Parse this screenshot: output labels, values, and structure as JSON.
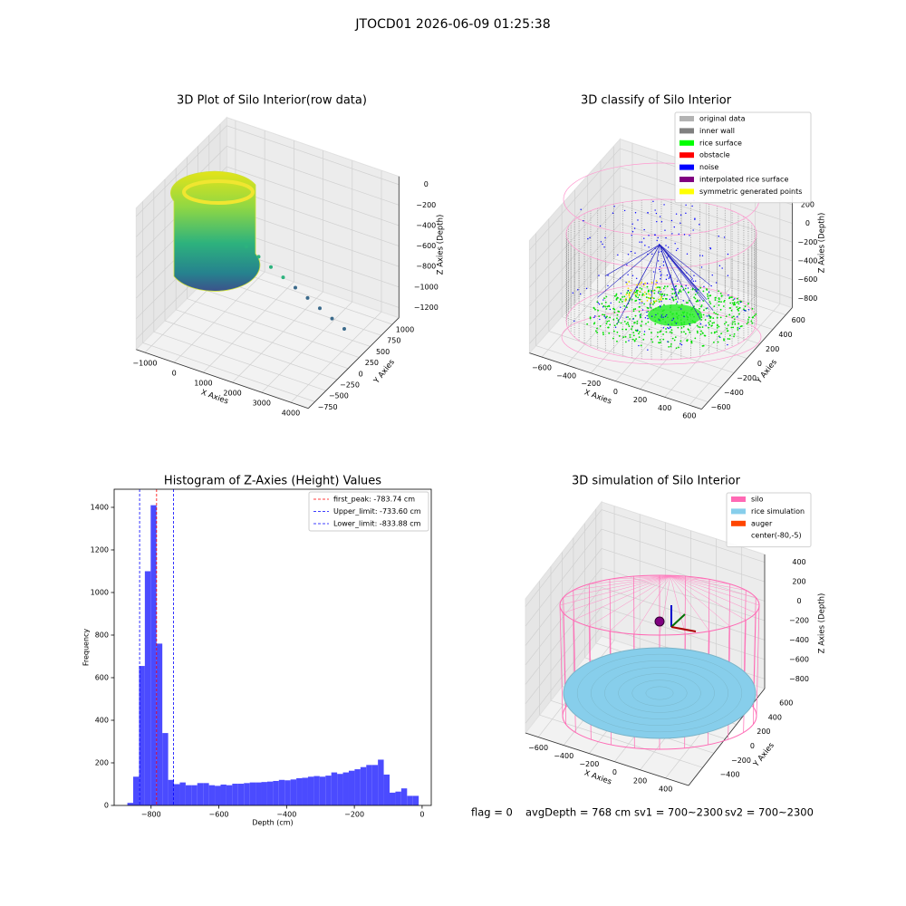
{
  "title": "JTOCD01 2026-06-09 01:25:38",
  "footer": [
    "flag = 0",
    "avgDepth = 768 cm",
    "sv1 = 700~2300",
    "sv2 = 700~2300"
  ],
  "chart_data": [
    {
      "type": "scatter3d",
      "title": "3D Plot of Silo Interior(row data)",
      "xlabel": "X Axies",
      "ylabel": "Y Axies",
      "zlabel": "Z Axies (Depth)",
      "xlim": [
        -1300,
        4600
      ],
      "ylim": [
        -900,
        1150
      ],
      "zlim": [
        -1300,
        80
      ],
      "xticks": [
        {
          "value": -1000,
          "label": "−1000"
        },
        0,
        1000,
        2000,
        3000,
        4000
      ],
      "yticks": [
        {
          "value": -750,
          "label": "−750"
        },
        {
          "value": -500,
          "label": "−500"
        },
        {
          "value": -250,
          "label": "−250"
        },
        0,
        250,
        500,
        750,
        1000
      ],
      "zticks": [
        0,
        {
          "value": -200,
          "label": "−200"
        },
        {
          "value": -400,
          "label": "−400"
        },
        {
          "value": -600,
          "label": "−600"
        },
        {
          "value": -800,
          "label": "−800"
        },
        {
          "value": -1000,
          "label": "−1000"
        },
        {
          "value": -1200,
          "label": "−1200"
        }
      ],
      "grid": true
    },
    {
      "type": "scatter3d",
      "title": "3D classify of Silo Interior",
      "xlabel": "X Axies",
      "ylabel": "Y Axies",
      "zlabel": "Z Axies (Depth)",
      "xlim": [
        -700,
        700
      ],
      "ylim": [
        -700,
        700
      ],
      "zlim": [
        -900,
        300
      ],
      "xticks": [
        {
          "value": -600,
          "label": "−600"
        },
        {
          "value": -400,
          "label": "−400"
        },
        {
          "value": -200,
          "label": "−200"
        },
        0,
        200,
        400,
        600
      ],
      "yticks": [
        {
          "value": -600,
          "label": "−600"
        },
        {
          "value": -400,
          "label": "−400"
        },
        {
          "value": -200,
          "label": "−200"
        },
        0,
        200,
        400,
        600
      ],
      "zticks": [
        200,
        0,
        {
          "value": -200,
          "label": "−200"
        },
        {
          "value": -400,
          "label": "−400"
        },
        {
          "value": -600,
          "label": "−600"
        },
        {
          "value": -800,
          "label": "−800"
        }
      ],
      "grid": true,
      "legend_loc": "upper right",
      "legend": [
        {
          "name": "original data",
          "color": "#b3b3b3"
        },
        {
          "name": "inner wall",
          "color": "#808080"
        },
        {
          "name": "rice surface",
          "color": "#00ff00"
        },
        {
          "name": "obstacle",
          "color": "#ff0000"
        },
        {
          "name": "noise",
          "color": "#0000ff"
        },
        {
          "name": "interpolated rice surface",
          "color": "#800080"
        },
        {
          "name": "symmetric generated points",
          "color": "#ffff00"
        }
      ]
    },
    {
      "type": "histogram",
      "title": "Histogram of Z-Axies (Height) Values",
      "xlabel": "Depth (cm)",
      "ylabel": "Frequency",
      "color": "#4b4bff",
      "bins": [
        -870,
        -852.8,
        -835.6,
        -818.4,
        -801.2,
        -784,
        -766.8,
        -749.6,
        -732.4,
        -715.2,
        -698,
        -680.8,
        -663.6,
        -646.4,
        -629.2,
        -612,
        -594.8,
        -577.6,
        -560.4,
        -543.2,
        -526,
        -508.8,
        -491.6,
        -474.4,
        -457.2,
        -440,
        -422.8,
        -405.6,
        -388.4,
        -371.2,
        -354,
        -336.8,
        -319.6,
        -302.4,
        -285.2,
        -268,
        -250.8,
        -233.6,
        -216.4,
        -199.2,
        -182,
        -164.8,
        -147.6,
        -130.4,
        -113.2,
        -96,
        -78.8,
        -61.6,
        -44.4,
        -27.2,
        -10
      ],
      "values": [
        12,
        135,
        655,
        1100,
        1410,
        760,
        340,
        120,
        100,
        108,
        95,
        95,
        105,
        105,
        95,
        92,
        98,
        95,
        102,
        102,
        105,
        108,
        108,
        110,
        112,
        115,
        120,
        118,
        122,
        128,
        130,
        135,
        138,
        135,
        140,
        155,
        148,
        155,
        163,
        170,
        180,
        190,
        190,
        215,
        145,
        60,
        65,
        80,
        45,
        45
      ],
      "xlim": [
        -909,
        27
      ],
      "ylim": [
        0,
        1485
      ],
      "xticks": [
        {
          "value": -800,
          "label": "−800"
        },
        {
          "value": -600,
          "label": "−600"
        },
        {
          "value": -400,
          "label": "−400"
        },
        {
          "value": -200,
          "label": "−200"
        },
        0
      ],
      "yticks": [
        0,
        200,
        400,
        600,
        800,
        1000,
        1200,
        1400
      ],
      "lines": [
        {
          "label": "first_peak: -783.74 cm",
          "value": -783.74,
          "color": "#ff0000"
        },
        {
          "label": "Upper_limit: -733.60 cm",
          "value": -733.6,
          "color": "#0000ff"
        },
        {
          "label": "Lower_limit: -833.88 cm",
          "value": -833.88,
          "color": "#0000ff"
        }
      ],
      "legend_loc": "upper right"
    },
    {
      "type": "surface3d",
      "title": "3D simulation of Silo Interior",
      "xlabel": "X Axies",
      "ylabel": "Y Axies",
      "zlabel": "Z Axies (Depth)",
      "xlim": [
        -700,
        580
      ],
      "ylim": [
        -650,
        700
      ],
      "zlim": [
        -900,
        480
      ],
      "xticks": [
        {
          "value": -600,
          "label": "−600"
        },
        {
          "value": -400,
          "label": "−400"
        },
        {
          "value": -200,
          "label": "−200"
        },
        0,
        200,
        400
      ],
      "yticks": [
        {
          "value": -400,
          "label": "−400"
        },
        {
          "value": -200,
          "label": "−200"
        },
        0,
        200,
        400,
        600
      ],
      "zticks": [
        400,
        200,
        0,
        {
          "value": -200,
          "label": "−200"
        },
        {
          "value": -400,
          "label": "−400"
        },
        {
          "value": -600,
          "label": "−600"
        },
        {
          "value": -800,
          "label": "−800"
        }
      ],
      "grid": true,
      "legend_loc": "upper right",
      "legend": [
        {
          "name": "silo",
          "color": "#ff69b4"
        },
        {
          "name": "rice simulation",
          "color": "#87ceeb"
        },
        {
          "name": "auger",
          "color": "#ff4500"
        },
        {
          "name": "center(-80,-5)",
          "color": "#ffffff"
        }
      ]
    }
  ]
}
